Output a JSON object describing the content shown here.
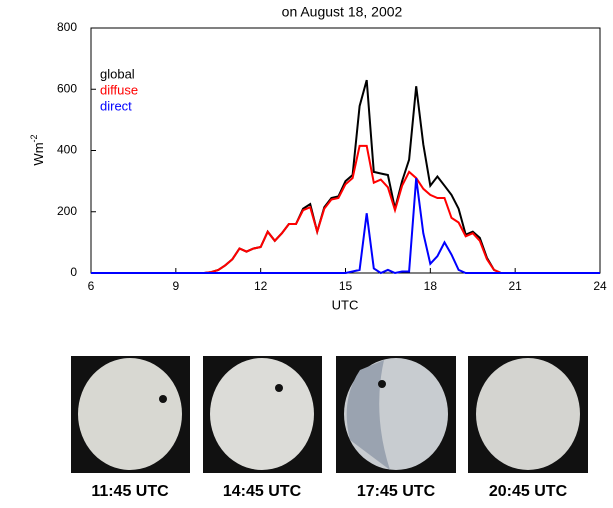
{
  "chart_data": {
    "type": "line",
    "title": "on August 18, 2002",
    "xlabel": "UTC",
    "ylabel": {
      "base": "Wm",
      "sup": "-2"
    },
    "x": [
      6,
      10,
      10.25,
      10.5,
      10.75,
      11,
      11.25,
      11.5,
      11.75,
      12,
      12.25,
      12.5,
      12.75,
      13,
      13.25,
      13.5,
      13.75,
      14,
      14.25,
      14.5,
      14.75,
      15,
      15.25,
      15.5,
      15.75,
      16,
      16.25,
      16.5,
      16.75,
      17,
      17.25,
      17.5,
      17.75,
      18,
      18.25,
      18.5,
      18.75,
      19,
      19.25,
      19.5,
      19.75,
      20,
      20.25,
      20.5,
      21,
      24
    ],
    "series": [
      {
        "name": "global",
        "color": "#000000",
        "values": [
          0,
          0,
          3,
          10,
          25,
          45,
          80,
          70,
          80,
          85,
          135,
          105,
          130,
          160,
          160,
          210,
          225,
          135,
          215,
          245,
          250,
          300,
          320,
          545,
          630,
          330,
          325,
          320,
          210,
          300,
          370,
          610,
          420,
          285,
          315,
          285,
          255,
          210,
          125,
          135,
          115,
          50,
          10,
          0,
          0,
          0
        ]
      },
      {
        "name": "diffuse",
        "color": "#ff0000",
        "values": [
          0,
          0,
          3,
          10,
          25,
          45,
          80,
          70,
          80,
          85,
          135,
          105,
          130,
          160,
          160,
          205,
          215,
          135,
          210,
          240,
          245,
          290,
          310,
          415,
          415,
          295,
          305,
          280,
          205,
          285,
          330,
          310,
          275,
          255,
          245,
          245,
          180,
          165,
          120,
          130,
          105,
          45,
          10,
          0,
          0,
          0
        ]
      },
      {
        "name": "direct",
        "color": "#0000ff",
        "values": [
          0,
          0,
          0,
          0,
          0,
          0,
          0,
          0,
          0,
          0,
          0,
          0,
          0,
          0,
          0,
          0,
          0,
          0,
          0,
          0,
          0,
          0,
          5,
          10,
          195,
          15,
          0,
          10,
          0,
          5,
          5,
          310,
          130,
          30,
          55,
          100,
          60,
          10,
          0,
          0,
          0,
          0,
          0,
          0,
          0,
          0
        ]
      }
    ],
    "xlim": [
      6,
      24
    ],
    "xticks": [
      6,
      9,
      12,
      15,
      18,
      21,
      24
    ],
    "ylim": [
      0,
      800
    ],
    "yticks": [
      0,
      200,
      400,
      600,
      800
    ]
  },
  "photos": [
    "11:45 UTC",
    "14:45 UTC",
    "17:45 UTC",
    "20:45 UTC"
  ]
}
